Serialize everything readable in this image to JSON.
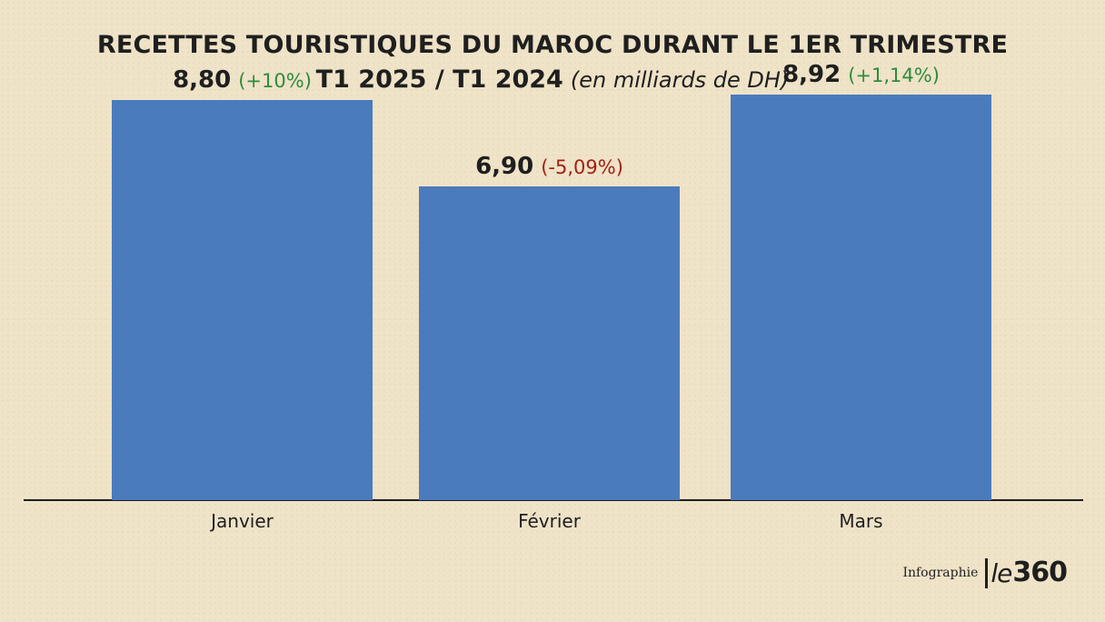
{
  "header": {
    "title": "RECETTES TOURISTIQUES DU MAROC DURANT LE 1ER TRIMESTRE",
    "period": "T1 2025 / T1 2024",
    "unit_note": "(en milliards de DH)"
  },
  "footer": {
    "infographie_label": "Infographie",
    "logo_le": "le",
    "logo_num": "360"
  },
  "colors": {
    "bar": "#4a7bbd",
    "positive": "#2e8b3d",
    "negative": "#a32015",
    "text": "#1f1f1f",
    "axis": "#1f1f1f"
  },
  "chart_data": {
    "type": "bar",
    "categories": [
      "Janvier",
      "Février",
      "Mars"
    ],
    "values": [
      8.8,
      6.9,
      8.92
    ],
    "value_labels": [
      "8,80",
      "6,90",
      "8,92"
    ],
    "change_labels": [
      "(+10%)",
      "(-5,09%)",
      "(+1,14%)"
    ],
    "change_sign": [
      "positive",
      "negative",
      "positive"
    ],
    "ylim": [
      0,
      10
    ],
    "title": "RECETTES TOURISTIQUES DU MAROC DURANT LE 1ER TRIMESTRE",
    "xlabel": "",
    "ylabel": "",
    "grid": false,
    "legend": "none"
  }
}
